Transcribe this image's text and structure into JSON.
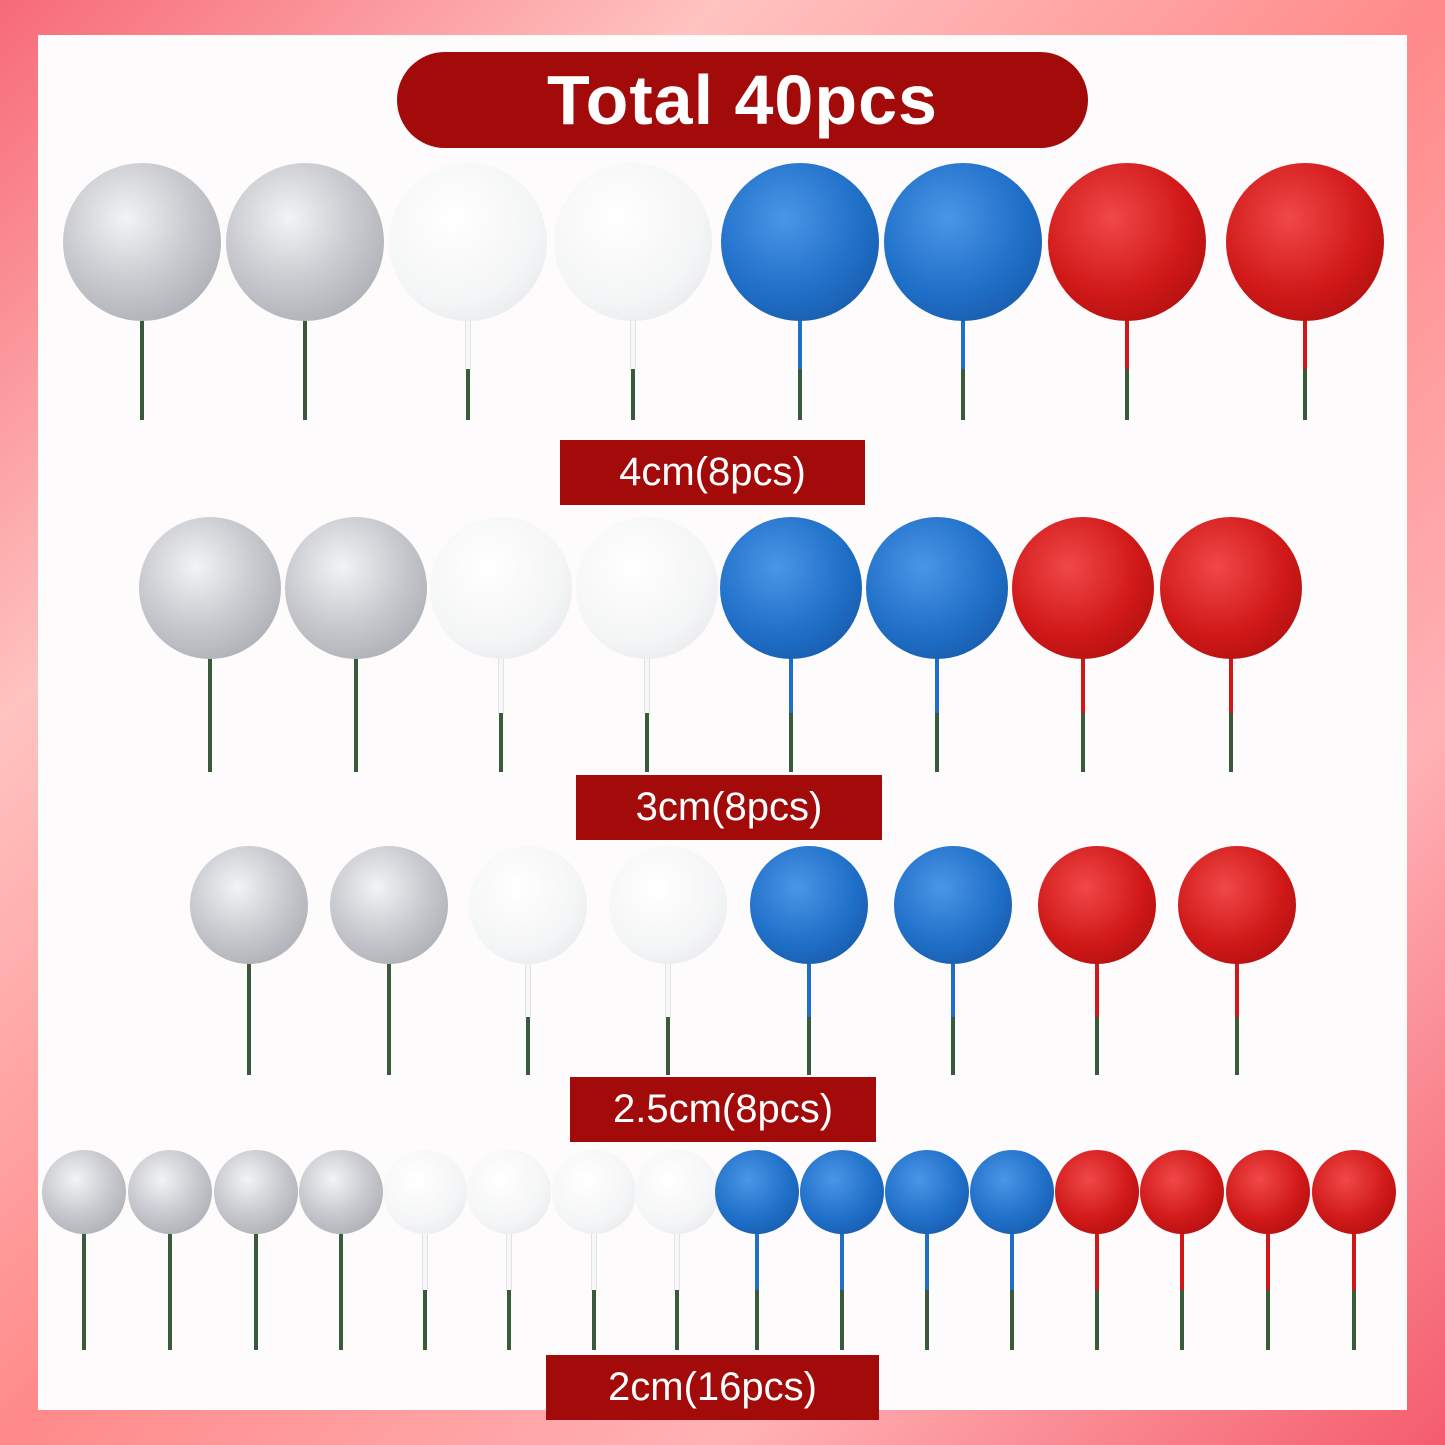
{
  "title": "Total 40pcs",
  "colors": {
    "silver": "#c4c6cc",
    "white": "#f6f7f8",
    "blue": "#1f6fc8",
    "red": "#d01818",
    "stem_green": "#3b5a3c",
    "banner": "#a30b0b"
  },
  "rows": [
    {
      "label": "4cm(8pcs)",
      "balls": [
        "silver",
        "silver",
        "white",
        "white",
        "blue",
        "blue",
        "red",
        "red"
      ]
    },
    {
      "label": "3cm(8pcs)",
      "balls": [
        "silver",
        "silver",
        "white",
        "white",
        "blue",
        "blue",
        "red",
        "red"
      ]
    },
    {
      "label": "2.5cm(8pcs)",
      "balls": [
        "silver",
        "silver",
        "white",
        "white",
        "blue",
        "blue",
        "red",
        "red"
      ]
    },
    {
      "label": "2cm(16pcs)",
      "balls": [
        "silver",
        "silver",
        "silver",
        "silver",
        "white",
        "white",
        "white",
        "white",
        "blue",
        "blue",
        "blue",
        "blue",
        "red",
        "red",
        "red",
        "red"
      ]
    }
  ]
}
